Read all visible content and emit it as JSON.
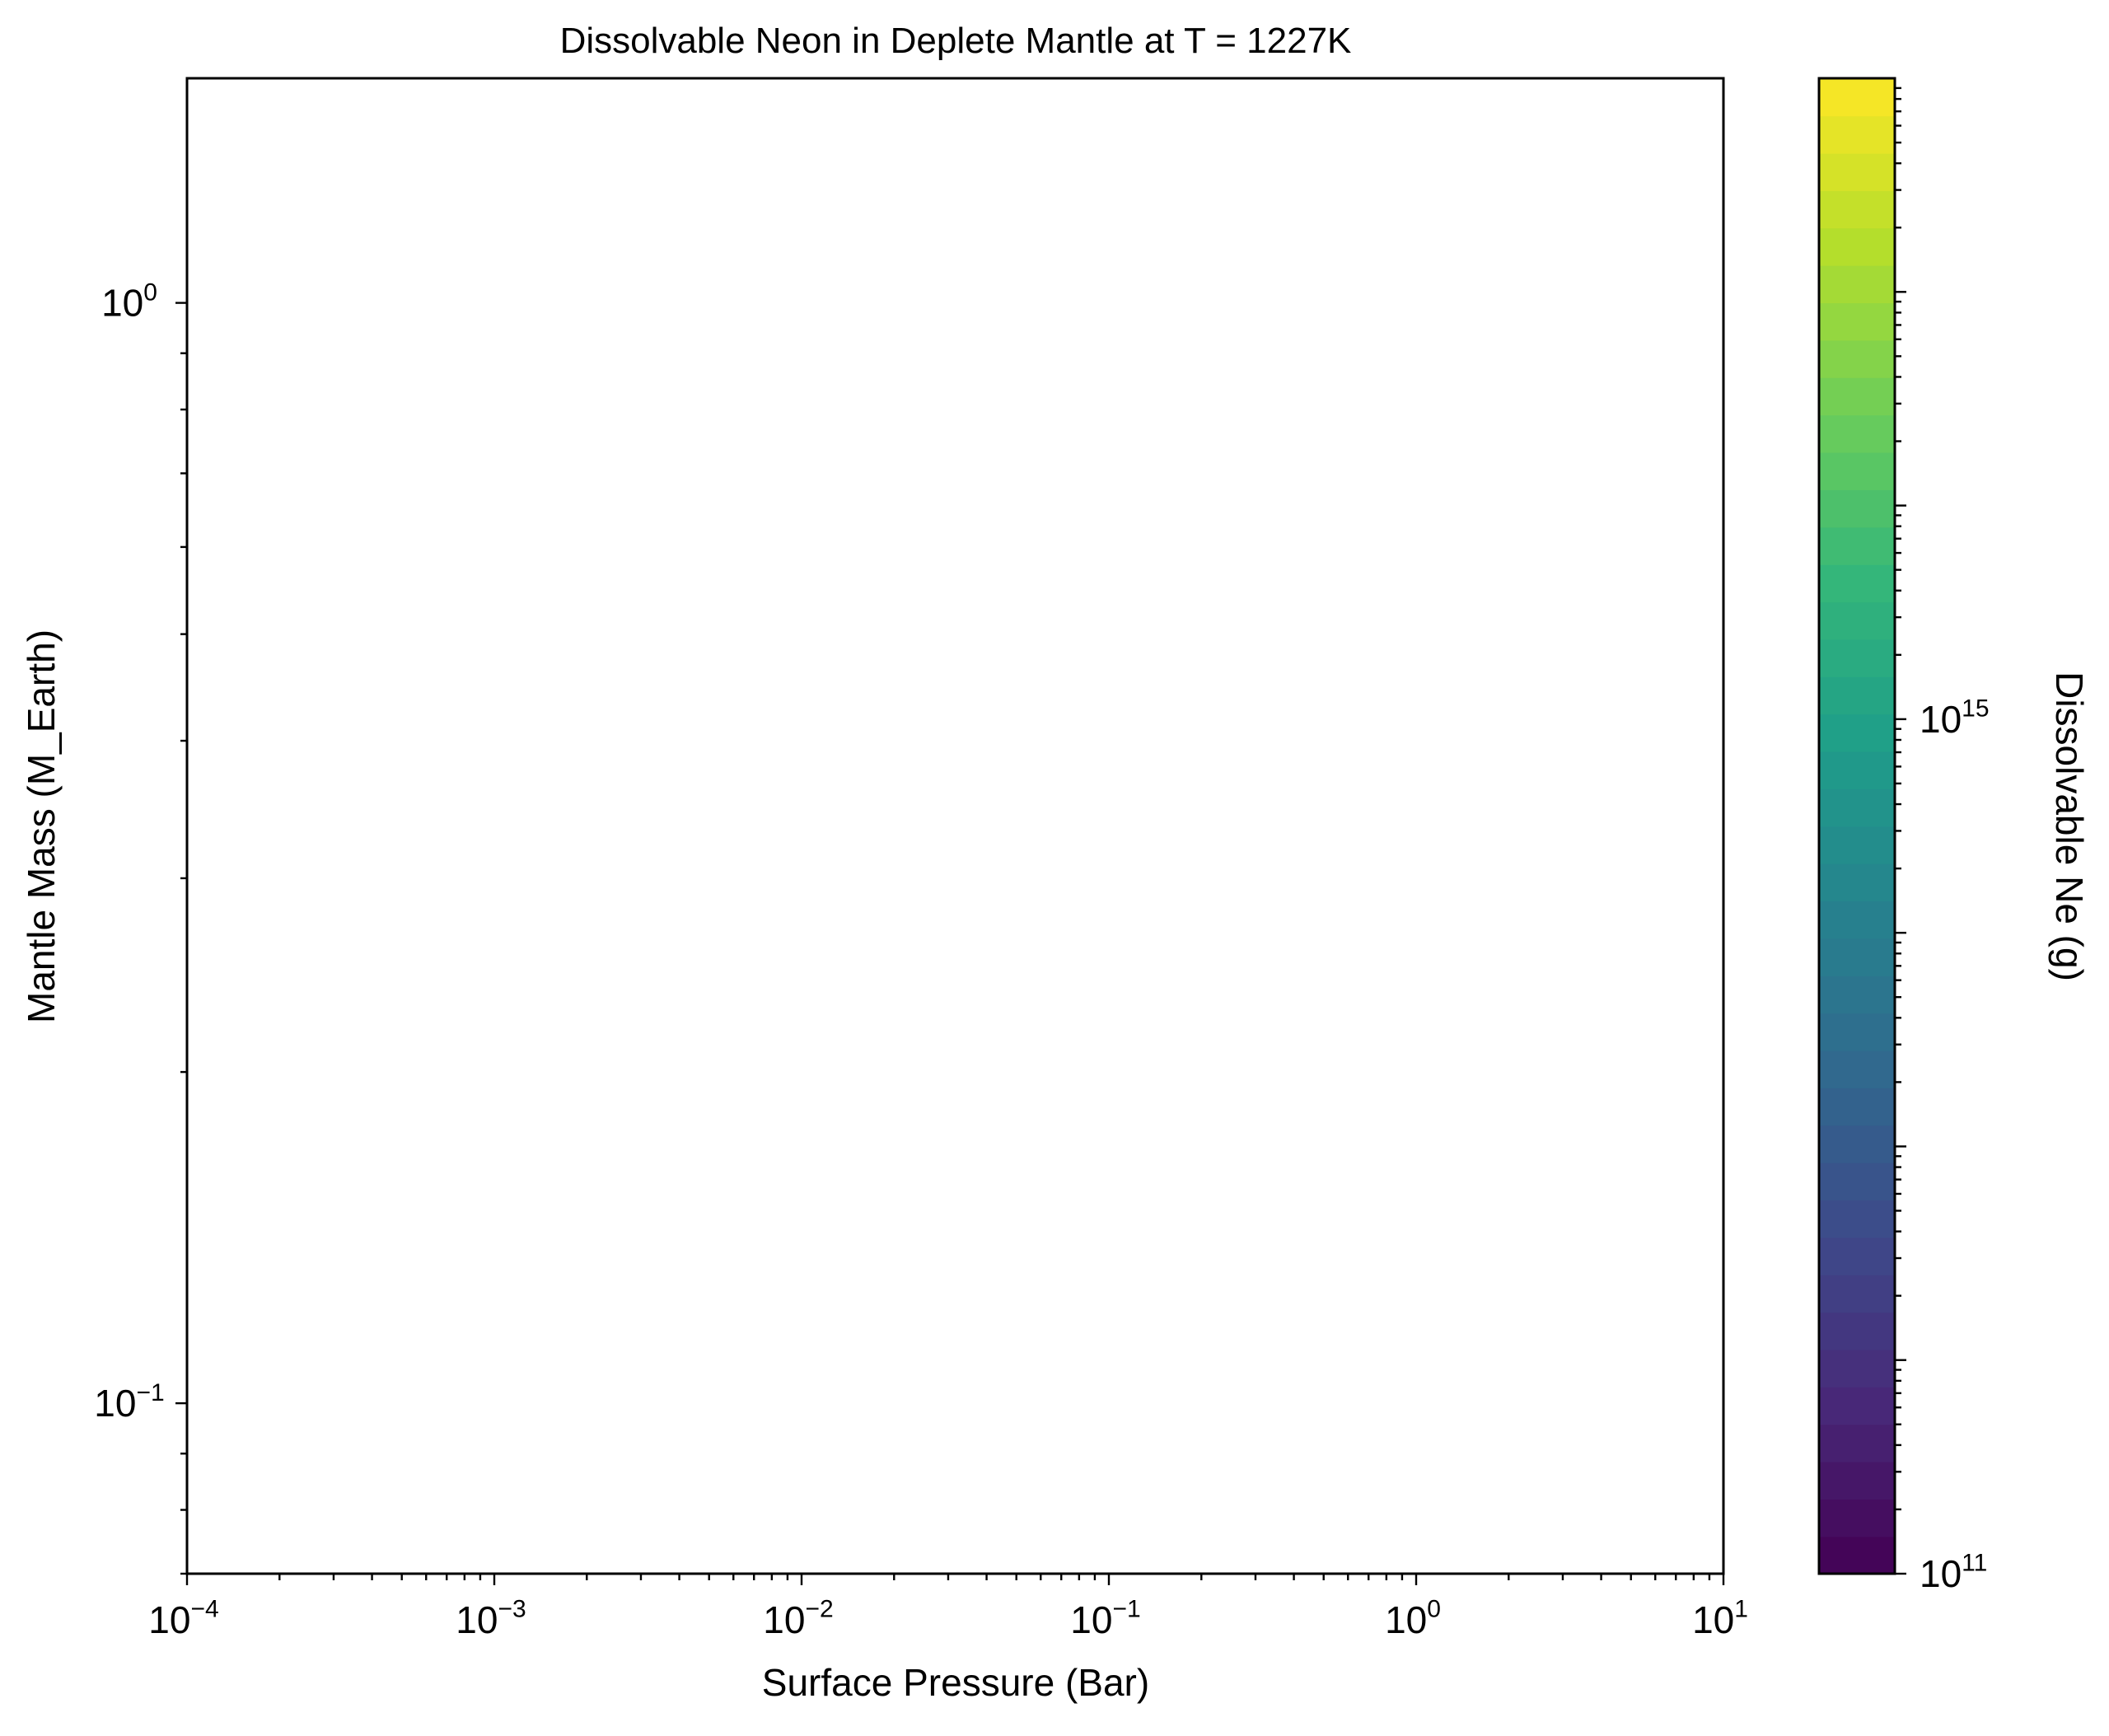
{
  "chart_data": {
    "type": "heatmap",
    "title": "Dissolvable Neon in Deplete Mantle at T = 1227K",
    "xlabel": "Surface Pressure (Bar)",
    "ylabel": "Mantle Mass (M_Earth)",
    "x_scale": "log",
    "y_scale": "log",
    "xlim": [
      0.0001,
      10
    ],
    "ylim": [
      0.07,
      1.6
    ],
    "grid": false,
    "plot_area_empty": true,
    "x_ticks": [
      {
        "value": 0.0001,
        "base": "10",
        "exp": "−4"
      },
      {
        "value": 0.001,
        "base": "10",
        "exp": "−3"
      },
      {
        "value": 0.01,
        "base": "10",
        "exp": "−2"
      },
      {
        "value": 0.1,
        "base": "10",
        "exp": "−1"
      },
      {
        "value": 1,
        "base": "10",
        "exp": "0"
      },
      {
        "value": 10,
        "base": "10",
        "exp": "1"
      }
    ],
    "y_ticks": [
      {
        "value": 0.1,
        "base": "10",
        "exp": "−1"
      },
      {
        "value": 1,
        "base": "10",
        "exp": "0"
      }
    ],
    "colorbar": {
      "label": "Dissolvable Ne (g)",
      "colormap": "viridis",
      "scale": "log",
      "range": [
        100000000000.0,
        1e+18
      ],
      "levels": 40,
      "colors_low_to_high": [
        "#440154",
        "#482878",
        "#3e4989",
        "#31688e",
        "#26828e",
        "#1f9e89",
        "#35b779",
        "#6ece58",
        "#b5de2b",
        "#fde725"
      ],
      "ticks": [
        {
          "value": 100000000000.0,
          "base": "10",
          "exp": "11"
        },
        {
          "value": 1000000000000000.0,
          "base": "10",
          "exp": "15"
        }
      ]
    }
  }
}
